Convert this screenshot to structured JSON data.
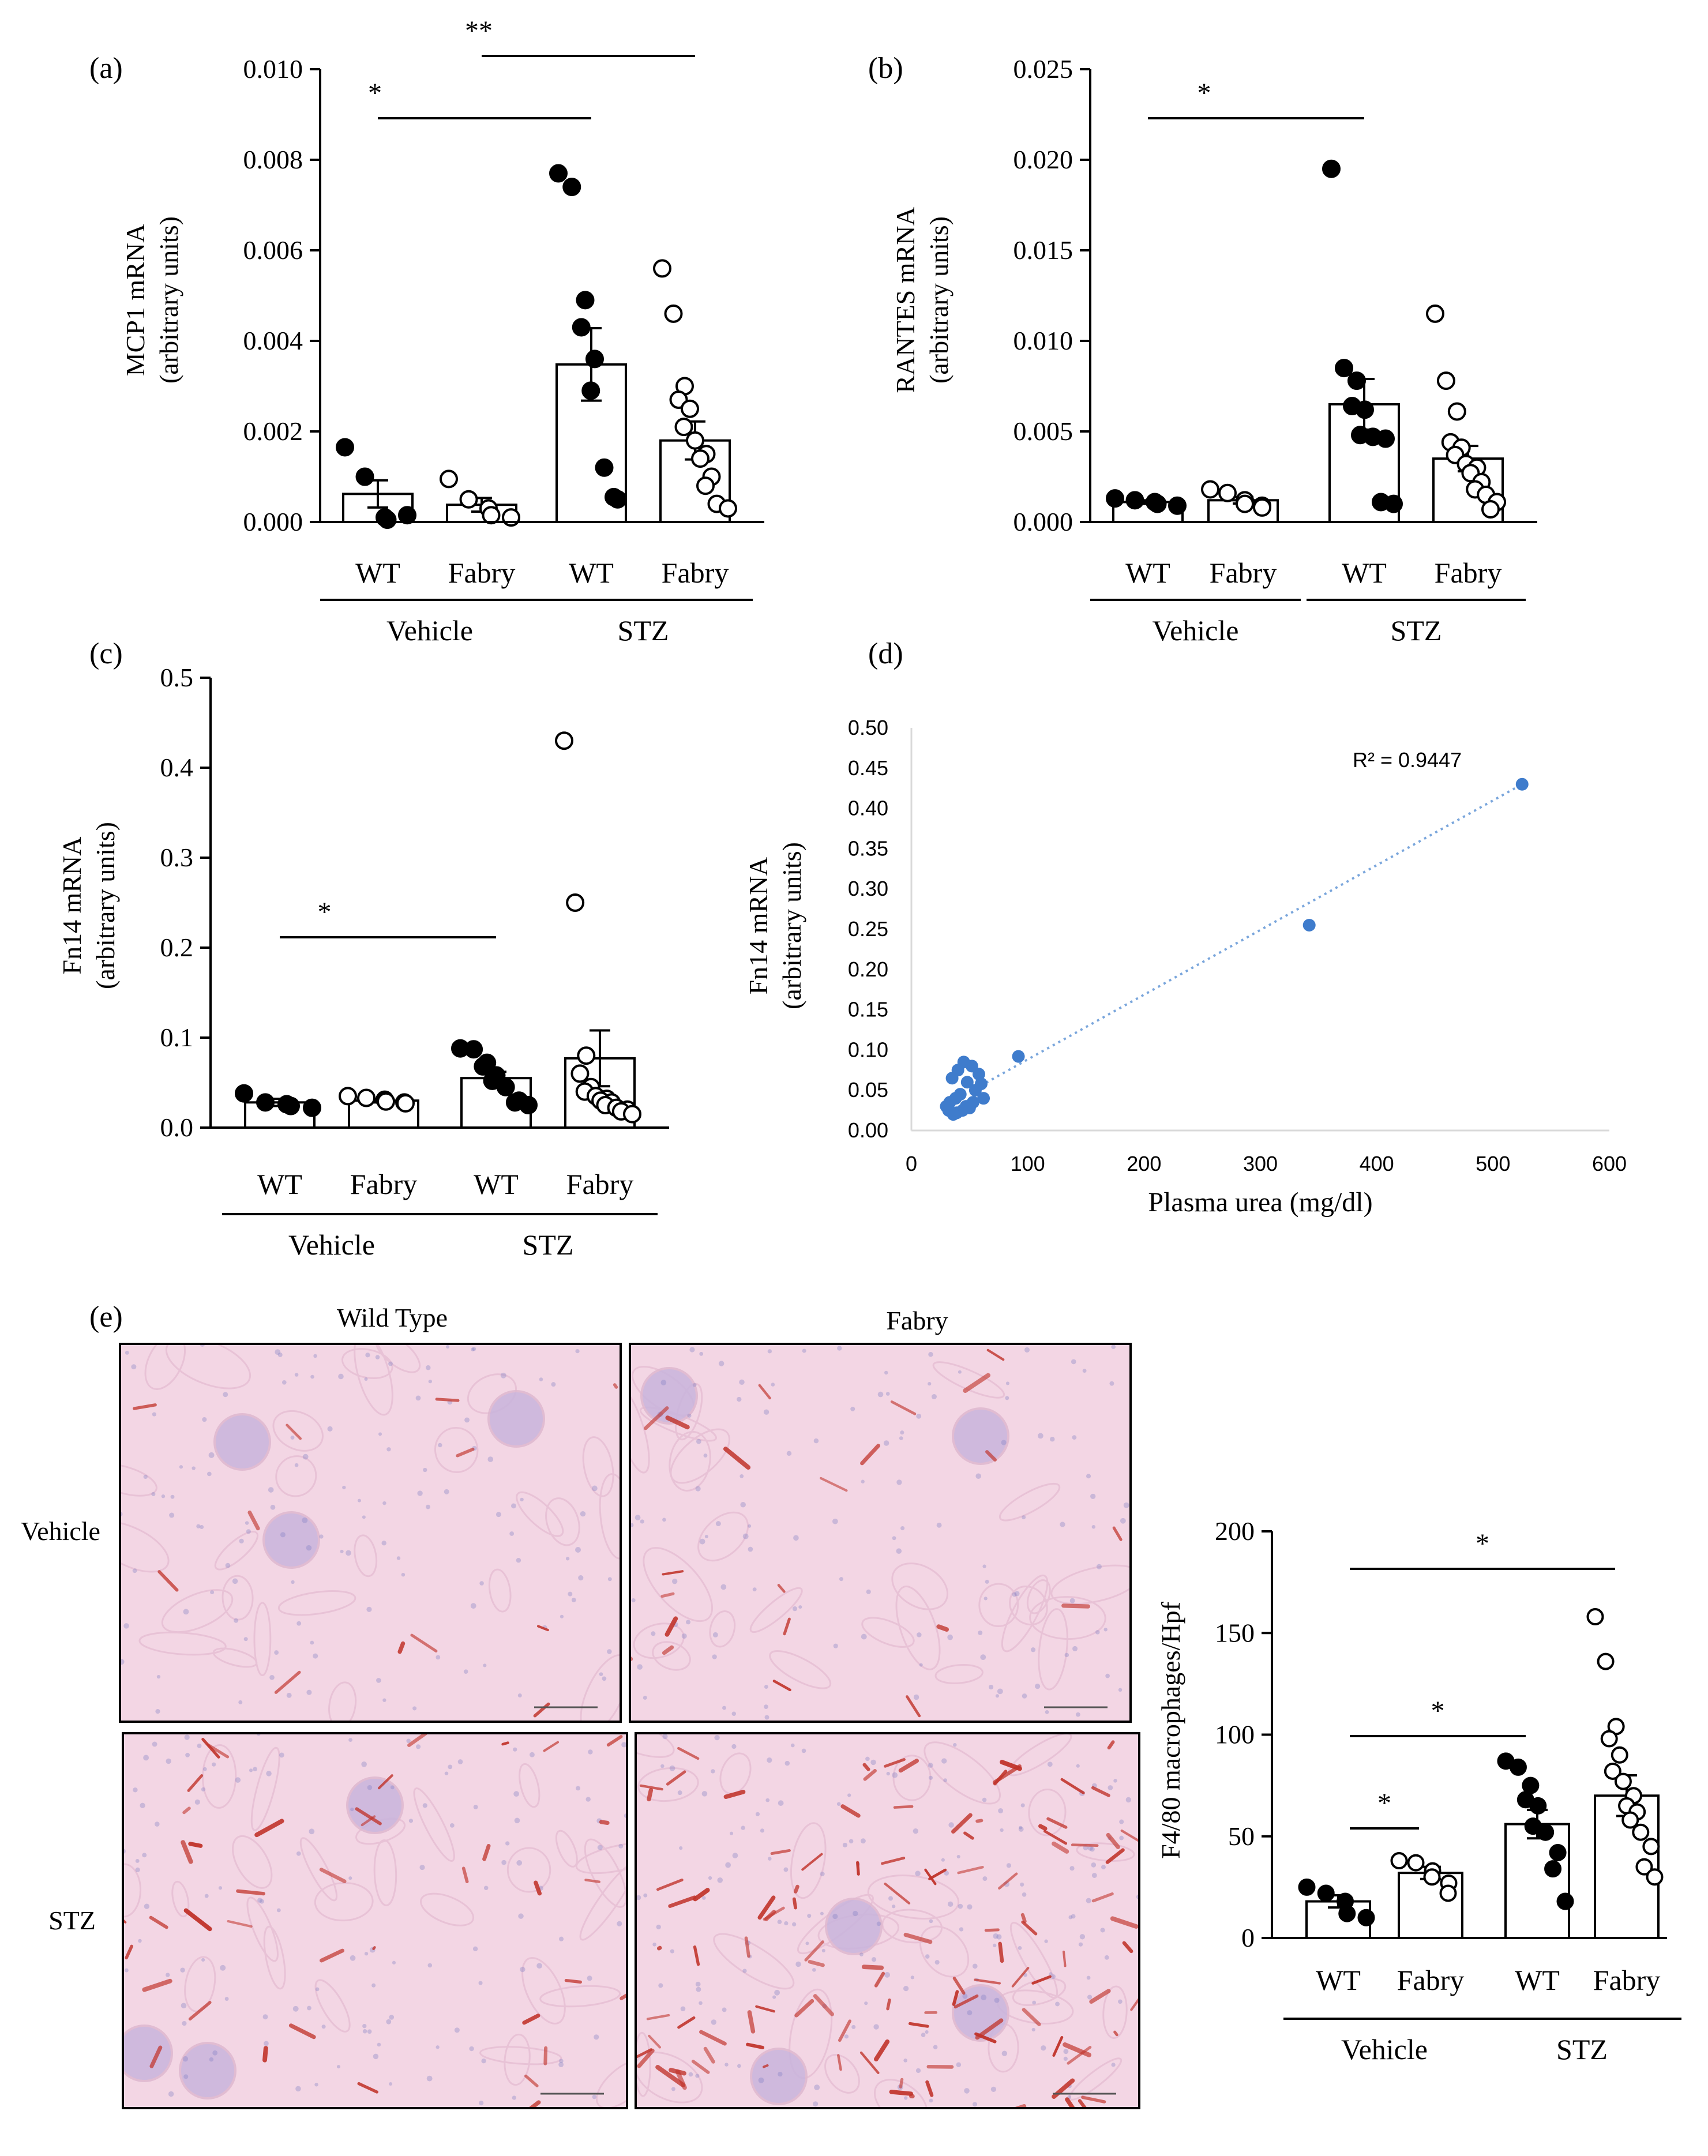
{
  "colors": {
    "axis": "#000000",
    "scatter_point": "#3f7ccc",
    "trend_line": "#7aa6dc",
    "tissue_base": "#f3d6e4",
    "stain": "#c1332a",
    "nuclei": "#7d7fc2"
  },
  "chart_data": [
    {
      "panel": "(a)",
      "type": "bar",
      "ylabel": "MCP1 mRNA",
      "ylabel2": "(arbitrary units)",
      "ylim": [
        0,
        0.01
      ],
      "ticks": [
        "0.000",
        "0.002",
        "0.004",
        "0.006",
        "0.008",
        "0.010"
      ],
      "tick_values": [
        0,
        0.002,
        0.004,
        0.006,
        0.008,
        0.01
      ],
      "categories": [
        "WT",
        "Fabry",
        "WT",
        "Fabry"
      ],
      "groups": [
        "Vehicle",
        "STZ"
      ],
      "marker_fill": [
        "filled",
        "open",
        "filled",
        "open"
      ],
      "means": [
        0.00062,
        0.00038,
        0.00348,
        0.0018
      ],
      "errors": [
        0.0003,
        0.00015,
        0.0008,
        0.00042
      ],
      "points": [
        [
          0.00165,
          0.001,
          0.0001,
          5e-05,
          0.00015
        ],
        [
          0.00095,
          0.0005,
          0.0003,
          0.00015,
          0.0001
        ],
        [
          0.0077,
          0.0074,
          0.0049,
          0.0043,
          0.0036,
          0.0029,
          0.0012,
          0.0005,
          0.00055
        ],
        [
          0.0056,
          0.0046,
          0.003,
          0.0027,
          0.0025,
          0.0021,
          0.0018,
          0.0015,
          0.0014,
          0.001,
          0.0008,
          0.0004,
          0.0003
        ]
      ],
      "significance": [
        {
          "label": "*",
          "from": 0,
          "to": 2
        },
        {
          "label": "**",
          "from": 1,
          "to": 3
        }
      ]
    },
    {
      "panel": "(b)",
      "type": "bar",
      "ylabel": "RANTES mRNA",
      "ylabel2": "(arbitrary units)",
      "ylim": [
        0,
        0.025
      ],
      "ticks": [
        "0.000",
        "0.005",
        "0.010",
        "0.015",
        "0.020",
        "0.025"
      ],
      "tick_values": [
        0,
        0.005,
        0.01,
        0.015,
        0.02,
        0.025
      ],
      "categories": [
        "WT",
        "Fabry",
        "WT",
        "Fabry"
      ],
      "groups": [
        "Vehicle",
        "STZ"
      ],
      "marker_fill": [
        "filled",
        "open",
        "filled",
        "open"
      ],
      "means": [
        0.0011,
        0.0012,
        0.0065,
        0.0035
      ],
      "errors": [
        0.0001,
        0.00018,
        0.0014,
        0.0007
      ],
      "points": [
        [
          0.0013,
          0.0012,
          0.0011,
          0.001,
          0.0009
        ],
        [
          0.0018,
          0.0016,
          0.0012,
          0.001,
          0.0009,
          0.0008
        ],
        [
          0.0195,
          0.0085,
          0.0078,
          0.0064,
          0.0062,
          0.0048,
          0.0047,
          0.0046,
          0.0011,
          0.001
        ],
        [
          0.0115,
          0.0078,
          0.0061,
          0.0044,
          0.0041,
          0.0037,
          0.0032,
          0.003,
          0.0027,
          0.0022,
          0.0018,
          0.0015,
          0.0011,
          0.0007
        ]
      ],
      "significance": [
        {
          "label": "*",
          "from": 0,
          "to": 2
        }
      ]
    },
    {
      "panel": "(c)",
      "type": "bar",
      "ylabel": "Fn14 mRNA",
      "ylabel2": "(arbitrary units)",
      "ylim": [
        0,
        0.5
      ],
      "ticks": [
        "0.0",
        "0.1",
        "0.2",
        "0.3",
        "0.4",
        "0.5"
      ],
      "tick_values": [
        0,
        0.1,
        0.2,
        0.3,
        0.4,
        0.5
      ],
      "categories": [
        "WT",
        "Fabry",
        "WT",
        "Fabry"
      ],
      "groups": [
        "Vehicle",
        "STZ"
      ],
      "marker_fill": [
        "filled",
        "open",
        "filled",
        "open"
      ],
      "means": [
        0.028,
        0.03,
        0.055,
        0.077
      ],
      "errors": [
        0.004,
        0.002,
        0.007,
        0.031
      ],
      "points": [
        [
          0.038,
          0.028,
          0.026,
          0.024,
          0.022
        ],
        [
          0.035,
          0.033,
          0.031,
          0.029,
          0.028,
          0.027
        ],
        [
          0.088,
          0.087,
          0.072,
          0.068,
          0.058,
          0.052,
          0.045,
          0.03,
          0.028,
          0.025
        ],
        [
          0.43,
          0.25,
          0.08,
          0.06,
          0.045,
          0.04,
          0.035,
          0.032,
          0.03,
          0.028,
          0.025,
          0.022,
          0.02,
          0.018,
          0.015
        ]
      ],
      "significance": [
        {
          "label": "*",
          "from": 0,
          "to": 2
        }
      ]
    },
    {
      "panel": "(d)",
      "type": "scatter",
      "xlabel": "Plasma urea (mg/dl)",
      "ylabel": "Fn14 mRNA",
      "ylabel2": "(arbitrary units)",
      "xlim": [
        0,
        600
      ],
      "ylim": [
        0,
        0.5
      ],
      "xticks": [
        "0",
        "100",
        "200",
        "300",
        "400",
        "500",
        "600"
      ],
      "xtick_values": [
        0,
        100,
        200,
        300,
        400,
        500,
        600
      ],
      "yticks": [
        "0.00",
        "0.05",
        "0.10",
        "0.15",
        "0.20",
        "0.25",
        "0.30",
        "0.35",
        "0.40",
        "0.45",
        "0.50"
      ],
      "ytick_values": [
        0,
        0.05,
        0.1,
        0.15,
        0.2,
        0.25,
        0.3,
        0.35,
        0.4,
        0.45,
        0.5
      ],
      "annotation": "R² = 0.9447",
      "trend": {
        "x": [
          50,
          525
        ],
        "y": [
          0.048,
          0.43
        ]
      },
      "x": [
        525,
        342,
        92,
        45,
        52,
        58,
        40,
        35,
        30,
        48,
        55,
        60,
        42,
        38,
        33,
        47,
        50,
        44,
        39,
        36,
        32,
        62,
        53
      ],
      "y": [
        0.43,
        0.255,
        0.092,
        0.085,
        0.08,
        0.07,
        0.075,
        0.065,
        0.03,
        0.06,
        0.05,
        0.058,
        0.045,
        0.04,
        0.035,
        0.03,
        0.028,
        0.025,
        0.022,
        0.02,
        0.025,
        0.04,
        0.035
      ]
    },
    {
      "panel": "(e)",
      "type": "bar",
      "ylabel": "F4/80 macrophages/Hpf",
      "ylim": [
        0,
        200
      ],
      "ticks": [
        "0",
        "50",
        "100",
        "150",
        "200"
      ],
      "tick_values": [
        0,
        50,
        100,
        150,
        200
      ],
      "categories": [
        "WT",
        "Fabry",
        "WT",
        "Fabry"
      ],
      "groups": [
        "Vehicle",
        "STZ"
      ],
      "marker_fill": [
        "filled",
        "open",
        "filled",
        "open"
      ],
      "means": [
        18,
        32,
        56,
        70
      ],
      "errors": [
        3,
        3,
        7,
        10
      ],
      "points": [
        [
          25,
          22,
          18,
          12,
          10
        ],
        [
          38,
          37,
          33,
          30,
          27,
          22
        ],
        [
          87,
          84,
          75,
          68,
          65,
          55,
          52,
          42,
          34,
          18
        ],
        [
          158,
          136,
          104,
          98,
          90,
          82,
          77,
          70,
          65,
          62,
          58,
          52,
          45,
          35,
          30
        ]
      ],
      "significance": [
        {
          "label": "*",
          "from": 0,
          "to": 1
        },
        {
          "label": "*",
          "from": 0,
          "to": 2
        },
        {
          "label": "*",
          "from": 0,
          "to": 3
        }
      ]
    }
  ],
  "micrographs": {
    "panel_label": "(e)",
    "column_titles": [
      "Wild Type",
      "Fabry"
    ],
    "row_titles": [
      "Vehicle",
      "STZ"
    ]
  }
}
